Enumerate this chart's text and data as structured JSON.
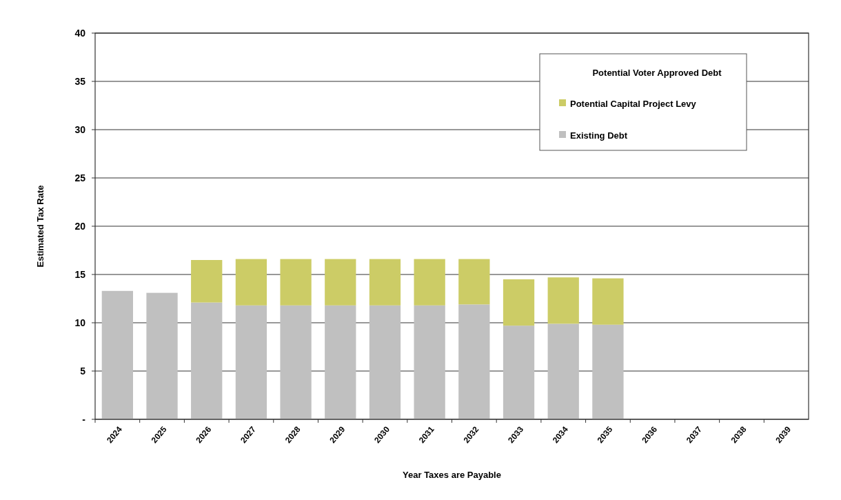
{
  "chart_data": {
    "type": "bar",
    "stacked": true,
    "xlabel": "Year Taxes are Payable",
    "ylabel": "Estimated Tax Rate",
    "legend_title": "Potential Voter Approved Debt",
    "legend": "top right",
    "grid": "y",
    "categories": [
      "2024",
      "2025",
      "2026",
      "2027",
      "2028",
      "2029",
      "2030",
      "2031",
      "2032",
      "2033",
      "2034",
      "2035",
      "2036",
      "2037",
      "2038",
      "2039"
    ],
    "series": [
      {
        "name": "Existing Debt",
        "color": "#c0c0c0",
        "values": [
          13.3,
          13.1,
          12.1,
          11.8,
          11.8,
          11.8,
          11.8,
          11.8,
          11.9,
          9.7,
          9.9,
          9.8,
          null,
          null,
          null,
          null
        ]
      },
      {
        "name": "Potential Capital Project Levy",
        "color": "#cccc66",
        "values": [
          null,
          null,
          4.4,
          4.8,
          4.8,
          4.8,
          4.8,
          4.8,
          4.7,
          4.8,
          4.8,
          4.8,
          null,
          null,
          null,
          null
        ]
      }
    ],
    "ylim": [
      0,
      40
    ],
    "yticks": [
      {
        "value": 0,
        "label": "-"
      },
      5,
      10,
      15,
      20,
      25,
      30,
      35,
      40
    ]
  }
}
